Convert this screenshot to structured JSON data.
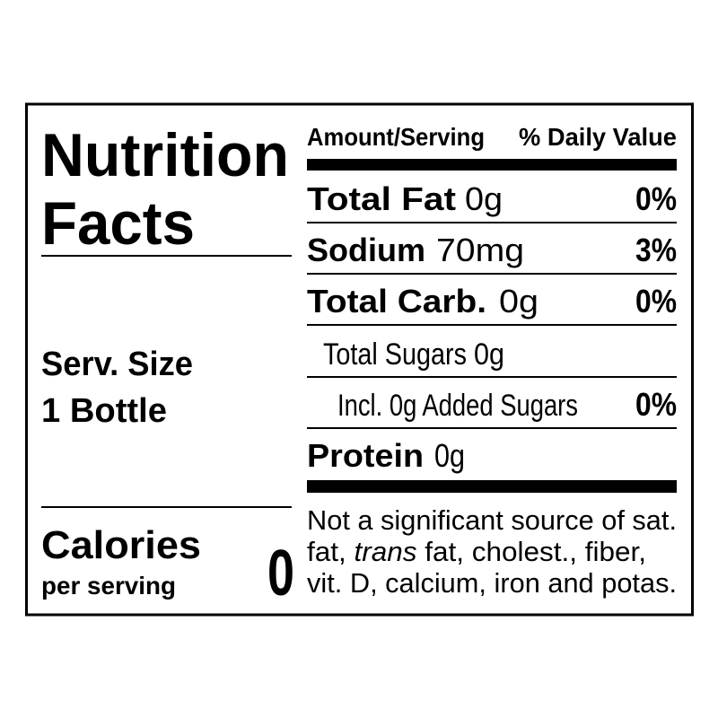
{
  "title_lines": [
    "Nutrition",
    "Facts"
  ],
  "serving": {
    "label": "Serv. Size",
    "size": "1 Bottle"
  },
  "calories": {
    "label": "Calories",
    "sub": "per serving",
    "value": 0
  },
  "header": {
    "amount": "Amount/Serving",
    "daily_value": "% Daily Value"
  },
  "rows": [
    {
      "name": "Total Fat",
      "amount": "0g",
      "dv": "0%"
    },
    {
      "name": "Sodium",
      "amount": "70mg",
      "dv": "3%"
    },
    {
      "name": "Total Carb.",
      "amount": "0g",
      "dv": "0%"
    },
    {
      "name": "Total Sugars",
      "amount": "0g"
    },
    {
      "name": "Incl. 0g Added Sugars",
      "dv": "0%"
    },
    {
      "name": "Protein",
      "amount": "0g"
    }
  ],
  "footnote": {
    "lines": [
      [
        "Not a significant source of sat."
      ],
      [
        "fat, ",
        "trans",
        " fat, cholest., fiber,"
      ],
      [
        "vit. D, calcium, iron and potas."
      ]
    ]
  }
}
